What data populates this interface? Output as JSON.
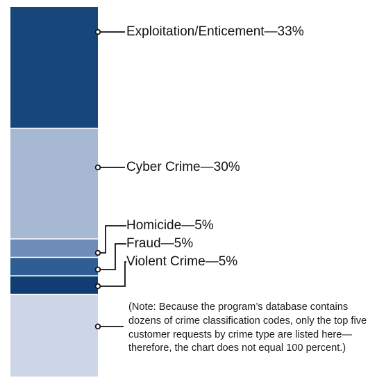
{
  "chart_data": {
    "type": "stacked-bar",
    "orientation": "vertical",
    "unit": "%",
    "segments": [
      {
        "label": "Exploitation/Enticement",
        "value": 33,
        "color": "#17467b"
      },
      {
        "label": "Cyber Crime",
        "value": 30,
        "color": "#a7b8d5"
      },
      {
        "label": "Homicide",
        "value": 5,
        "color": "#6f8cb8"
      },
      {
        "label": "Fraud",
        "value": 5,
        "color": "#2f5e94"
      },
      {
        "label": "Violent Crime",
        "value": 5,
        "color": "#113e72"
      }
    ],
    "remainder": {
      "value": 22,
      "color": "#cdd6e6"
    },
    "separator": "—",
    "note": "(Note: Because the program’s database contains dozens of crime classification codes, only the top five customer requests by crime type are listed here—therefore, the chart does not equal 100 percent.)"
  }
}
